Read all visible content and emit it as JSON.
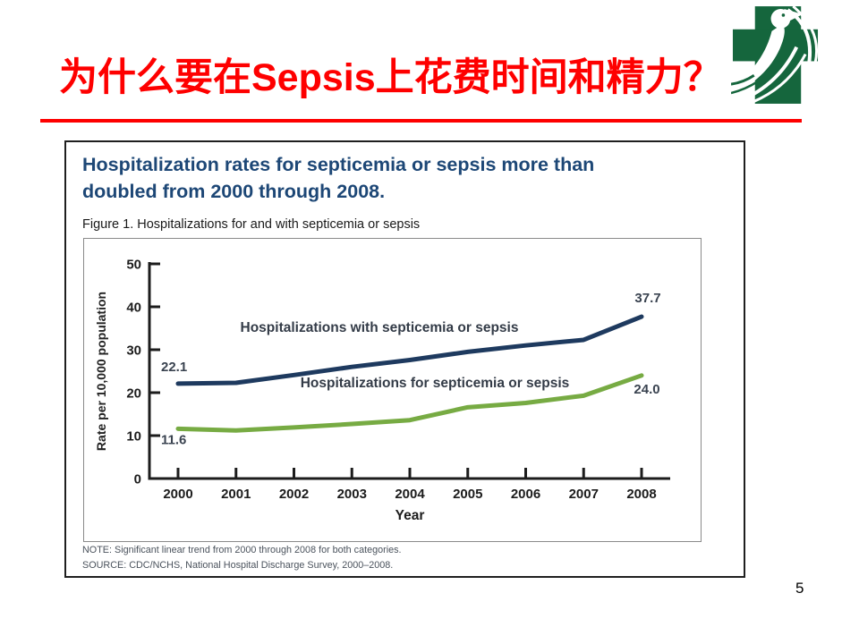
{
  "slide": {
    "title": "为什么要在Sepsis上花费时间和精力？",
    "page_number": "5",
    "accent_color": "#fe0000"
  },
  "logo": {
    "name": "green-cross-dove-hospital-logo",
    "cross_color": "#15663d"
  },
  "figure": {
    "heading_lines": [
      "Hospitalization rates for septicemia or sepsis more than",
      "doubled from 2000 through 2008."
    ],
    "heading_color": "#1d4776",
    "caption": "Figure 1. Hospitalizations for and with septicemia or sepsis",
    "note": "NOTE: Significant linear trend from 2000 through 2008 for both categories.",
    "source": "SOURCE: CDC/NCHS, National Hospital Discharge Survey, 2000–2008."
  },
  "chart_data": {
    "type": "line",
    "title": "Figure 1. Hospitalizations for and with septicemia or sepsis",
    "xlabel": "Year",
    "ylabel": "Rate per 10,000 population",
    "x": [
      "2000",
      "2001",
      "2002",
      "2003",
      "2004",
      "2005",
      "2006",
      "2007",
      "2008"
    ],
    "ylim": [
      0,
      50
    ],
    "yticks": [
      0,
      10,
      20,
      30,
      40,
      50
    ],
    "grid": false,
    "legend_position": "inline-labels",
    "series": [
      {
        "name": "Hospitalizations with septicemia or sepsis",
        "color": "#1e3a5f",
        "values": [
          22.1,
          22.3,
          24.1,
          26.0,
          27.6,
          29.5,
          31.0,
          32.3,
          37.7
        ]
      },
      {
        "name": "Hospitalizations for septicemia or sepsis",
        "color": "#77ab43",
        "values": [
          11.6,
          11.2,
          11.9,
          12.7,
          13.6,
          16.6,
          17.6,
          19.3,
          24.0
        ]
      }
    ],
    "point_labels": [
      {
        "series": 0,
        "index": 0,
        "text": "22.1"
      },
      {
        "series": 0,
        "index": 8,
        "text": "37.7"
      },
      {
        "series": 1,
        "index": 0,
        "text": "11.6"
      },
      {
        "series": 1,
        "index": 8,
        "text": "24.0"
      }
    ]
  }
}
